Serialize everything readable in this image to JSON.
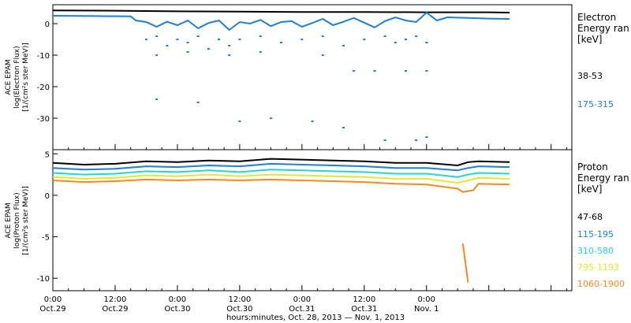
{
  "chart_data": [
    {
      "type": "scatter",
      "ylabel": [
        "ACE EPAM",
        "log(Electron Flux)",
        "[1/(cm²s ster MeV)]"
      ],
      "ylim": [
        -40,
        6
      ],
      "yticks": [
        0,
        -10,
        -20,
        -30
      ],
      "legend": {
        "title": [
          "Electron",
          "Energy ran",
          "[keV]"
        ],
        "placement": "right",
        "entries": [
          {
            "label": "38-53",
            "color": "#000000"
          },
          {
            "label": "175-315",
            "color": "#1f7fd0"
          }
        ]
      },
      "series": [
        {
          "name": "38-53",
          "color": "#000000",
          "x": [
            0,
            12,
            24,
            36,
            48,
            60,
            72,
            84,
            88
          ],
          "y": [
            4.2,
            4.1,
            3.9,
            3.8,
            3.7,
            3.7,
            3.6,
            3.6,
            3.5
          ]
        },
        {
          "name": "175-315",
          "color": "#1f7fd0",
          "x": [
            0,
            8,
            15,
            16,
            18,
            20,
            22,
            24,
            26,
            28,
            30,
            32,
            34,
            36,
            38,
            40,
            42,
            44,
            46,
            48,
            50,
            52,
            54,
            56,
            58,
            60,
            62,
            64,
            66,
            68,
            70,
            72,
            74,
            76,
            80,
            84,
            88
          ],
          "y": [
            2.5,
            2.4,
            2.3,
            1.0,
            0.5,
            -1.0,
            0.6,
            -0.5,
            1.0,
            -1.5,
            0.2,
            1.0,
            -2.0,
            0.5,
            0.0,
            1.2,
            -0.8,
            0.5,
            0.8,
            -1.0,
            0.2,
            1.5,
            -0.5,
            0.6,
            1.8,
            0.3,
            -1.2,
            0.8,
            2.0,
            1.0,
            0.5,
            3.5,
            1.0,
            2.0,
            1.8,
            1.6,
            1.5
          ]
        },
        {
          "name": "175-315 scattered",
          "color": "#1f7fd0",
          "x": [
            18,
            20,
            22,
            24,
            26,
            28,
            30,
            32,
            34,
            36,
            40,
            44,
            48,
            52,
            56,
            60,
            64,
            66,
            68,
            70,
            72,
            20,
            26,
            34,
            40,
            52,
            58,
            62,
            68,
            72,
            20,
            28,
            36,
            42,
            50,
            56,
            64,
            70,
            72
          ],
          "y": [
            -5,
            -4,
            -7,
            -5,
            -6,
            -4,
            -8,
            -5,
            -7,
            -5,
            -4,
            -6,
            -5,
            -4,
            -7,
            -5,
            -4,
            -6,
            -5,
            -4,
            -6,
            -10,
            -9,
            -10,
            -9,
            -10,
            -15,
            -15,
            -15,
            -15,
            -24,
            -25,
            -31,
            -30,
            -31,
            -33,
            -37,
            -37,
            -36
          ]
        }
      ],
      "xlim": [
        0,
        100
      ]
    },
    {
      "type": "line",
      "ylabel": [
        "ACE EPAM",
        "log(Proton Flux)",
        "[1/(cm²s ster MeV)]"
      ],
      "ylim": [
        -11.5,
        5.5
      ],
      "yticks": [
        5,
        0,
        -5,
        -10
      ],
      "legend": {
        "title": [
          "Proton",
          "Energy ran",
          "[keV]"
        ],
        "placement": "right",
        "entries": [
          {
            "label": "47-68",
            "color": "#000000"
          },
          {
            "label": "115-195",
            "color": "#1f7fd0"
          },
          {
            "label": "310-580",
            "color": "#27d3d3"
          },
          {
            "label": "795-1193",
            "color": "#e6e62a"
          },
          {
            "label": "1060-1900",
            "color": "#f58a1f"
          }
        ]
      },
      "series": [
        {
          "name": "47-68",
          "color": "#000000",
          "x": [
            0,
            6,
            12,
            18,
            24,
            30,
            36,
            42,
            48,
            54,
            60,
            66,
            72,
            78,
            80,
            82,
            88
          ],
          "y": [
            3.9,
            3.7,
            3.8,
            4.1,
            4.0,
            4.2,
            4.1,
            4.4,
            4.3,
            4.2,
            4.1,
            3.9,
            3.9,
            3.6,
            4.0,
            4.1,
            4.0
          ]
        },
        {
          "name": "115-195",
          "color": "#1f7fd0",
          "x": [
            0,
            6,
            12,
            18,
            24,
            30,
            36,
            42,
            48,
            54,
            60,
            66,
            72,
            78,
            80,
            82,
            88
          ],
          "y": [
            3.3,
            3.1,
            3.2,
            3.5,
            3.4,
            3.6,
            3.5,
            3.8,
            3.7,
            3.6,
            3.5,
            3.3,
            3.3,
            3.0,
            3.3,
            3.5,
            3.4
          ]
        },
        {
          "name": "310-580",
          "color": "#27d3d3",
          "x": [
            0,
            6,
            12,
            18,
            24,
            30,
            36,
            42,
            48,
            54,
            60,
            66,
            72,
            78,
            80,
            82,
            88
          ],
          "y": [
            2.7,
            2.5,
            2.6,
            2.9,
            2.8,
            3.0,
            2.8,
            3.1,
            3.0,
            2.9,
            2.8,
            2.6,
            2.6,
            2.2,
            2.5,
            2.7,
            2.6
          ]
        },
        {
          "name": "795-1193",
          "color": "#e6e62a",
          "x": [
            0,
            6,
            12,
            18,
            24,
            30,
            36,
            42,
            48,
            54,
            60,
            66,
            72,
            78,
            80,
            82,
            88
          ],
          "y": [
            2.2,
            2.0,
            2.1,
            2.4,
            2.3,
            2.5,
            2.3,
            2.5,
            2.4,
            2.3,
            2.2,
            2.0,
            2.0,
            1.5,
            1.8,
            2.1,
            2.0
          ]
        },
        {
          "name": "1060-1900",
          "color": "#f58a1f",
          "x": [
            0,
            6,
            12,
            18,
            24,
            30,
            36,
            42,
            48,
            54,
            60,
            66,
            72,
            78,
            79,
            80,
            81,
            82,
            88
          ],
          "y": [
            1.8,
            1.6,
            1.7,
            1.9,
            1.8,
            1.9,
            1.8,
            1.9,
            1.8,
            1.7,
            1.6,
            1.4,
            1.3,
            0.8,
            0.4,
            0.5,
            0.6,
            1.4,
            1.3
          ]
        },
        {
          "name": "1060-1900 outliers",
          "color": "#f58a1f",
          "x": [
            79,
            80
          ],
          "y": [
            -5.8,
            -10.5
          ]
        }
      ],
      "xlim": [
        0,
        100
      ]
    }
  ],
  "xaxis": {
    "ticks": [
      {
        "x": 0,
        "time": "0:00",
        "date": "Oct.29"
      },
      {
        "x": 12,
        "time": "12:00",
        "date": "Oct.29"
      },
      {
        "x": 24,
        "time": "0:00",
        "date": "Oct.30"
      },
      {
        "x": 36,
        "time": "12:00",
        "date": "Oct.30"
      },
      {
        "x": 48,
        "time": "0:00",
        "date": "Oct.31"
      },
      {
        "x": 60,
        "time": "12:00",
        "date": "Oct.31"
      },
      {
        "x": 72,
        "time": "0:00",
        "date": "Nov. 1"
      }
    ],
    "xlabel": "hours:minutes, Oct. 28, 2013 — Nov. 1, 2013"
  }
}
